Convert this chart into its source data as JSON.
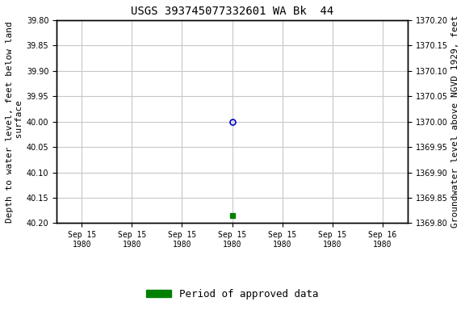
{
  "title": "USGS 393745077332601 WA Bk  44",
  "title_fontsize": 10,
  "left_ylabel": "Depth to water level, feet below land\n surface",
  "right_ylabel": "Groundwater level above NGVD 1929, feet",
  "ylabel_fontsize": 8,
  "ylim_left_top": 39.8,
  "ylim_left_bottom": 40.2,
  "ylim_right_top": 1370.2,
  "ylim_right_bottom": 1369.8,
  "yticks_left": [
    39.8,
    39.85,
    39.9,
    39.95,
    40.0,
    40.05,
    40.1,
    40.15,
    40.2
  ],
  "yticks_right": [
    1370.2,
    1370.15,
    1370.1,
    1370.05,
    1370.0,
    1369.95,
    1369.9,
    1369.85,
    1369.8
  ],
  "data_open_circle": {
    "date_num": 3.5,
    "depth": 40.0
  },
  "data_green_square": {
    "date_num": 3.5,
    "depth": 40.185
  },
  "xlim": [
    0,
    7
  ],
  "xtick_positions": [
    0.5,
    1.5,
    2.5,
    3.5,
    4.5,
    5.5,
    6.5
  ],
  "xtick_labels": [
    "Sep 15\n1980",
    "Sep 15\n1980",
    "Sep 15\n1980",
    "Sep 15\n1980",
    "Sep 15\n1980",
    "Sep 15\n1980",
    "Sep 16\n1980"
  ],
  "background_color": "#ffffff",
  "grid_color": "#c8c8c8",
  "legend_label": "Period of approved data",
  "legend_color": "#008000",
  "open_circle_color": "#0000cd",
  "tick_fontsize": 7,
  "legend_fontsize": 9
}
